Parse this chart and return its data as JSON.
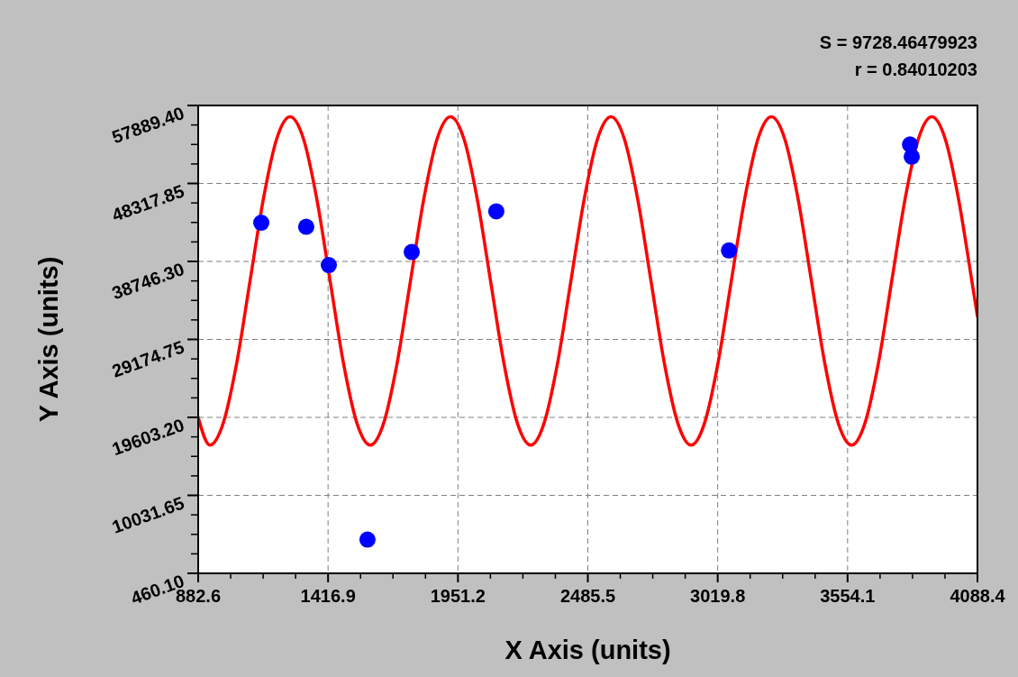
{
  "chart_data": {
    "type": "scatter",
    "xlabel": "X Axis (units)",
    "ylabel": "Y Axis (units)",
    "annotations": [
      "S = 9728.46479923",
      "r = 0.84010203"
    ],
    "xlim": [
      882.6,
      4088.4
    ],
    "xticks": [
      882.6,
      1416.9,
      1951.2,
      2485.5,
      3019.8,
      3554.1,
      4088.4
    ],
    "ylim": [
      460.1,
      57889.4
    ],
    "yticks": [
      {
        "value": 460.1,
        "label": "460.10"
      },
      10031.65,
      {
        "value": 19603.2,
        "label": "19603.20"
      },
      29174.75,
      {
        "value": 38746.3,
        "label": "38746.30"
      },
      48317.85,
      {
        "value": 57889.4,
        "label": "57889.40"
      }
    ],
    "grid": true,
    "marker": "circle",
    "series": [
      {
        "color": "#0000ff",
        "x": [
          1142,
          1327,
          1420,
          1579,
          1761,
          2109,
          3066,
          3811,
          3818
        ],
        "values": [
          43500,
          43000,
          38300,
          4600,
          39900,
          44900,
          40100,
          53100,
          51600
        ]
      },
      {
        "type": "line",
        "color": "#ff0000",
        "marker": "none",
        "x": [
          882.6,
          930.6,
          985.6,
          1040.6,
          1095.6,
          1150.6,
          1205.6,
          1260.6,
          1315.6,
          1370.6,
          1425.6,
          1480.6,
          1535.6,
          1590.6,
          1645.6,
          1700.6,
          1755.6,
          1810.6,
          1865.6,
          1920.6,
          1975.6,
          2030.6,
          2085.6,
          2140.6,
          2195.6,
          2250.6,
          2305.6,
          2360.6,
          2415.6,
          2470.6,
          2525.6,
          2580.6,
          2635.6,
          2690.6,
          2745.6,
          2800.6,
          2855.6,
          2910.6,
          2965.6,
          3020.6,
          3075.6,
          3130.6,
          3185.6,
          3240.6,
          3295.6,
          3350.6,
          3405.6,
          3460.6,
          3515.6,
          3570.6,
          3625.6,
          3680.6,
          3735.6,
          3790.6,
          3845.6,
          3900.6,
          3955.6,
          4010.6,
          4065.6,
          4088.4
        ],
        "values": [
          19600,
          16200,
          18900,
          26200,
          36300,
          46400,
          53800,
          56500,
          53800,
          46400,
          36300,
          26200,
          18900,
          16200,
          18900,
          26200,
          36300,
          46400,
          53800,
          56500,
          53800,
          46400,
          36300,
          26200,
          18900,
          16200,
          18900,
          26200,
          36300,
          46400,
          53800,
          56500,
          53800,
          46400,
          36300,
          26200,
          18900,
          16200,
          18900,
          26200,
          36300,
          46400,
          53800,
          56500,
          53800,
          46400,
          36300,
          26200,
          18900,
          16200,
          18900,
          26200,
          36300,
          46400,
          53800,
          56500,
          53800,
          46400,
          36300,
          32000
        ]
      }
    ]
  }
}
